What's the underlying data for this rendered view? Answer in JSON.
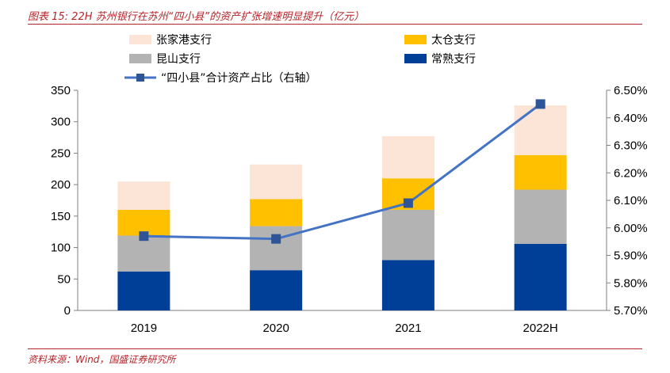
{
  "header": {
    "title": "图表 15:  22H 苏州银行在苏州“四小县”的资产扩张增速明显提升（亿元）"
  },
  "footer": {
    "source": "资料来源：Wind，国盛证券研究所"
  },
  "chart_data": {
    "type": "bar",
    "stacked": true,
    "categories": [
      "2019",
      "2020",
      "2021",
      "2022H"
    ],
    "series": [
      {
        "name": "常熟支行",
        "type": "bar",
        "axis": "left",
        "color": "#003f98",
        "values": [
          62,
          64,
          80,
          106
        ]
      },
      {
        "name": "昆山支行",
        "type": "bar",
        "axis": "left",
        "color": "#b3b3b3",
        "values": [
          57,
          70,
          80,
          86
        ]
      },
      {
        "name": "太仓支行",
        "type": "bar",
        "axis": "left",
        "color": "#ffc000",
        "values": [
          41,
          43,
          50,
          55
        ]
      },
      {
        "name": "张家港支行",
        "type": "bar",
        "axis": "left",
        "color": "#fce4d6",
        "values": [
          45,
          55,
          67,
          79
        ]
      },
      {
        "name": "“四小县”合计资产占比（右轴）",
        "type": "line",
        "axis": "right",
        "color": "#4472c4",
        "marker_color": "#2f5597",
        "values": [
          5.97,
          5.96,
          6.09,
          6.45
        ]
      }
    ],
    "y_left": {
      "min": 0,
      "max": 350,
      "ticks": [
        "0",
        "50",
        "100",
        "150",
        "200",
        "250",
        "300",
        "350"
      ]
    },
    "y_right": {
      "min": 5.7,
      "max": 6.5,
      "ticks": [
        "5.70%",
        "5.80%",
        "5.90%",
        "6.00%",
        "6.10%",
        "6.20%",
        "6.30%",
        "6.40%",
        "6.50%"
      ]
    },
    "legend": {
      "placement": "top",
      "entries": [
        "张家港支行",
        "太仓支行",
        "昆山支行",
        "常熟支行",
        "“四小县”合计资产占比（右轴）"
      ]
    },
    "grid": false
  }
}
